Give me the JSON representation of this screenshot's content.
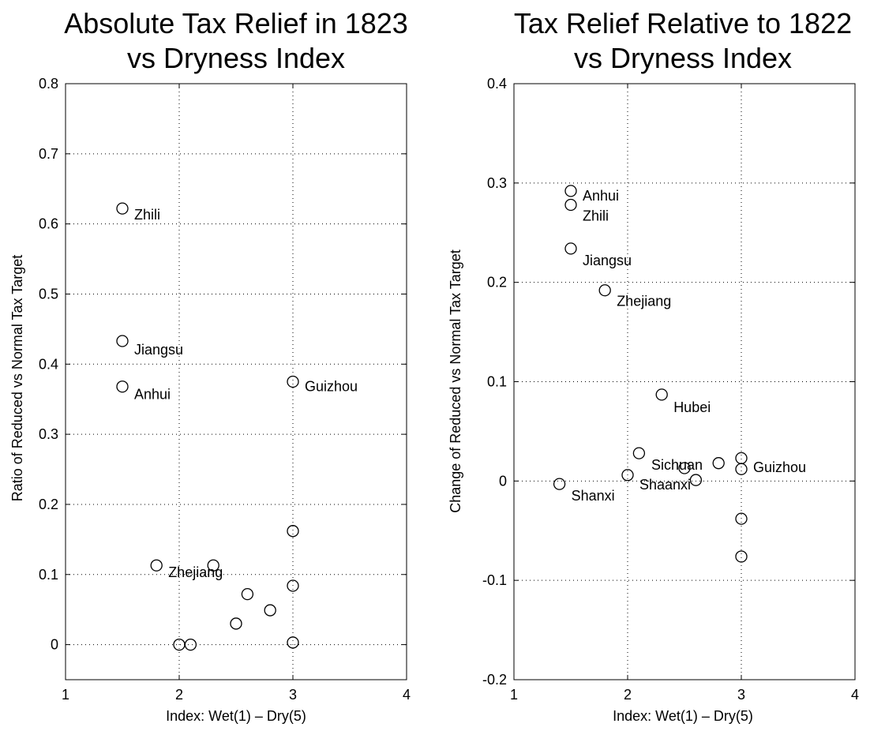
{
  "chart_data": [
    {
      "type": "scatter",
      "title": [
        "Absolute Tax Relief in 1823",
        "vs Dryness Index"
      ],
      "xlabel": "Index: Wet(1) – Dry(5)",
      "ylabel": "Ratio of Reduced vs Normal Tax Target",
      "xlim": [
        1,
        4
      ],
      "ylim": [
        -0.05,
        0.8
      ],
      "xticks": [
        1,
        2,
        3,
        4
      ],
      "xtick_labels": [
        "1",
        "2",
        "3",
        "4"
      ],
      "yticks": [
        0,
        0.1,
        0.2,
        0.3,
        0.4,
        0.5,
        0.6,
        0.7,
        0.8
      ],
      "ytick_labels": [
        "0",
        "0.1",
        "0.2",
        "0.3",
        "0.4",
        "0.5",
        "0.6",
        "0.7",
        "0.8"
      ],
      "grid": true,
      "marker": "open-circle",
      "color": "#000000",
      "points": [
        {
          "x": 1.5,
          "y": 0.622,
          "label": "Zhili"
        },
        {
          "x": 1.5,
          "y": 0.433,
          "label": "Jiangsu"
        },
        {
          "x": 1.5,
          "y": 0.368,
          "label": "Anhui"
        },
        {
          "x": 3.0,
          "y": 0.375,
          "label": "Guizhou"
        },
        {
          "x": 1.8,
          "y": 0.113,
          "label": "Zhejiang"
        },
        {
          "x": 2.3,
          "y": 0.113
        },
        {
          "x": 3.0,
          "y": 0.162
        },
        {
          "x": 3.0,
          "y": 0.084
        },
        {
          "x": 2.6,
          "y": 0.072
        },
        {
          "x": 2.8,
          "y": 0.049
        },
        {
          "x": 2.5,
          "y": 0.03
        },
        {
          "x": 2.0,
          "y": 0.0
        },
        {
          "x": 2.1,
          "y": 0.0
        },
        {
          "x": 3.0,
          "y": 0.003
        }
      ]
    },
    {
      "type": "scatter",
      "title": [
        "Tax Relief Relative to 1822",
        "vs Dryness Index"
      ],
      "xlabel": "Index: Wet(1) – Dry(5)",
      "ylabel": "Change of Reduced vs Normal Tax Target",
      "xlim": [
        1,
        4
      ],
      "ylim": [
        -0.2,
        0.4
      ],
      "xticks": [
        1,
        2,
        3,
        4
      ],
      "xtick_labels": [
        "1",
        "2",
        "3",
        "4"
      ],
      "yticks": [
        -0.2,
        -0.1,
        0,
        0.1,
        0.2,
        0.3,
        0.4
      ],
      "ytick_labels": [
        "-0.2",
        "-0.1",
        "0",
        "0.1",
        "0.2",
        "0.3",
        "0.4"
      ],
      "grid": true,
      "marker": "open-circle",
      "color": "#000000",
      "points": [
        {
          "x": 1.5,
          "y": 0.292,
          "label": "Anhui"
        },
        {
          "x": 1.5,
          "y": 0.278,
          "label": "Zhili"
        },
        {
          "x": 1.5,
          "y": 0.234,
          "label": "Jiangsu"
        },
        {
          "x": 1.8,
          "y": 0.192,
          "label": "Zhejiang"
        },
        {
          "x": 2.3,
          "y": 0.087,
          "label": "Hubei"
        },
        {
          "x": 2.1,
          "y": 0.028
        },
        {
          "x": 2.5,
          "y": 0.013,
          "label": "Sichuan"
        },
        {
          "x": 2.8,
          "y": 0.018
        },
        {
          "x": 3.0,
          "y": 0.023
        },
        {
          "x": 3.0,
          "y": 0.012,
          "label": "Guizhou"
        },
        {
          "x": 2.0,
          "y": 0.006,
          "label": "Shaanxi"
        },
        {
          "x": 2.6,
          "y": 0.001
        },
        {
          "x": 1.4,
          "y": -0.003,
          "label": "Shanxi"
        },
        {
          "x": 3.0,
          "y": -0.038
        },
        {
          "x": 3.0,
          "y": -0.076
        }
      ]
    }
  ]
}
